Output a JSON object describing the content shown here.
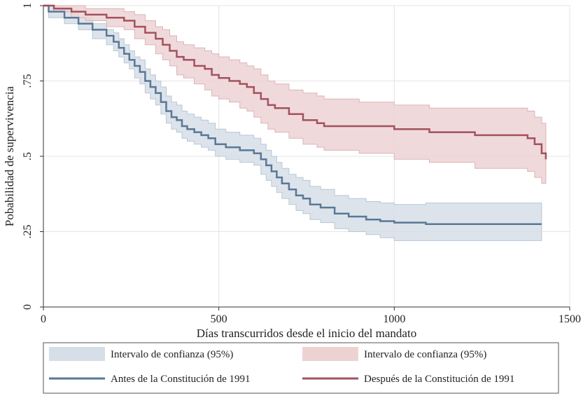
{
  "chart_data": {
    "type": "line",
    "xlabel": "Días transcurridos desde el inicio del mandato",
    "ylabel": "Pobabilidad de supervivencia",
    "xlim": [
      0,
      1500
    ],
    "ylim": [
      0,
      1
    ],
    "x_ticks": [
      0,
      500,
      1000,
      1500
    ],
    "x_tick_labels": [
      "0",
      "500",
      "1000",
      "1500"
    ],
    "y_ticks": [
      0,
      0.25,
      0.5,
      0.75,
      1
    ],
    "y_tick_labels": [
      "0",
      ".25",
      ".5",
      ".75",
      "1"
    ],
    "grid": true,
    "legend_position": "bottom",
    "colors": {
      "before_line": "#5a7896",
      "before_band": "#d6dee7",
      "after_line": "#a3525e",
      "after_band": "#edd2d4"
    },
    "series": [
      {
        "name": "Antes de la Constitución de 1991",
        "x": [
          0,
          15,
          60,
          100,
          140,
          180,
          200,
          215,
          230,
          245,
          260,
          275,
          290,
          305,
          320,
          335,
          350,
          365,
          380,
          395,
          410,
          430,
          450,
          470,
          490,
          520,
          560,
          600,
          620,
          635,
          650,
          665,
          680,
          700,
          720,
          740,
          760,
          790,
          830,
          870,
          920,
          960,
          1000,
          1090,
          1420
        ],
        "y": [
          1.0,
          0.98,
          0.96,
          0.94,
          0.92,
          0.9,
          0.88,
          0.86,
          0.84,
          0.82,
          0.8,
          0.78,
          0.75,
          0.73,
          0.71,
          0.68,
          0.65,
          0.63,
          0.62,
          0.6,
          0.59,
          0.58,
          0.57,
          0.56,
          0.54,
          0.53,
          0.52,
          0.51,
          0.49,
          0.47,
          0.45,
          0.43,
          0.41,
          0.39,
          0.37,
          0.36,
          0.34,
          0.33,
          0.31,
          0.3,
          0.29,
          0.285,
          0.28,
          0.275,
          0.275
        ],
        "ci_lower": [
          1.0,
          0.96,
          0.94,
          0.92,
          0.89,
          0.87,
          0.85,
          0.83,
          0.81,
          0.79,
          0.76,
          0.74,
          0.71,
          0.69,
          0.67,
          0.64,
          0.61,
          0.59,
          0.58,
          0.56,
          0.55,
          0.54,
          0.53,
          0.52,
          0.5,
          0.49,
          0.48,
          0.47,
          0.44,
          0.42,
          0.4,
          0.38,
          0.36,
          0.34,
          0.32,
          0.31,
          0.29,
          0.28,
          0.26,
          0.25,
          0.24,
          0.23,
          0.22,
          0.22,
          0.22
        ],
        "ci_upper": [
          1.0,
          1.0,
          0.98,
          0.96,
          0.94,
          0.92,
          0.91,
          0.89,
          0.87,
          0.85,
          0.83,
          0.82,
          0.79,
          0.77,
          0.75,
          0.73,
          0.7,
          0.68,
          0.67,
          0.65,
          0.64,
          0.63,
          0.62,
          0.61,
          0.59,
          0.58,
          0.57,
          0.56,
          0.54,
          0.52,
          0.5,
          0.48,
          0.46,
          0.44,
          0.43,
          0.42,
          0.4,
          0.39,
          0.37,
          0.36,
          0.35,
          0.345,
          0.34,
          0.345,
          0.345
        ]
      },
      {
        "name": "Después de la Constitución de 1991",
        "x": [
          0,
          30,
          80,
          120,
          180,
          230,
          260,
          290,
          320,
          340,
          360,
          380,
          400,
          430,
          460,
          480,
          500,
          530,
          560,
          580,
          600,
          620,
          640,
          660,
          700,
          740,
          780,
          800,
          900,
          1000,
          1100,
          1230,
          1380,
          1400,
          1420,
          1432
        ],
        "y": [
          1.0,
          0.99,
          0.98,
          0.97,
          0.96,
          0.95,
          0.93,
          0.91,
          0.89,
          0.87,
          0.85,
          0.83,
          0.82,
          0.8,
          0.79,
          0.77,
          0.76,
          0.75,
          0.74,
          0.73,
          0.71,
          0.69,
          0.67,
          0.66,
          0.64,
          0.62,
          0.61,
          0.6,
          0.6,
          0.59,
          0.58,
          0.57,
          0.56,
          0.54,
          0.51,
          0.49
        ],
        "ci_lower": [
          1.0,
          0.98,
          0.96,
          0.95,
          0.93,
          0.92,
          0.89,
          0.87,
          0.84,
          0.82,
          0.8,
          0.77,
          0.76,
          0.74,
          0.72,
          0.7,
          0.69,
          0.68,
          0.66,
          0.65,
          0.63,
          0.61,
          0.59,
          0.58,
          0.56,
          0.54,
          0.53,
          0.52,
          0.51,
          0.49,
          0.48,
          0.46,
          0.45,
          0.43,
          0.41,
          0.41
        ],
        "ci_upper": [
          1.0,
          1.0,
          1.0,
          0.99,
          0.99,
          0.98,
          0.97,
          0.95,
          0.93,
          0.92,
          0.9,
          0.88,
          0.87,
          0.86,
          0.85,
          0.84,
          0.83,
          0.82,
          0.81,
          0.8,
          0.79,
          0.77,
          0.75,
          0.74,
          0.72,
          0.71,
          0.7,
          0.69,
          0.68,
          0.67,
          0.66,
          0.66,
          0.65,
          0.63,
          0.61,
          0.61
        ]
      }
    ],
    "legend": [
      {
        "label": "Intervalo de confianza (95%)",
        "kind": "band",
        "series": 0
      },
      {
        "label": "Intervalo de confianza (95%)",
        "kind": "band",
        "series": 1
      },
      {
        "label": "Antes de la Constitución de 1991",
        "kind": "line",
        "series": 0
      },
      {
        "label": "Después de la Constitución de 1991",
        "kind": "line",
        "series": 1
      }
    ]
  }
}
